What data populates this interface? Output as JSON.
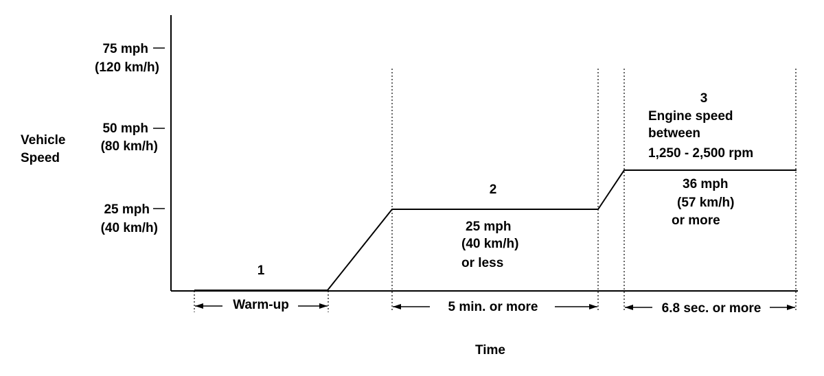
{
  "y_axis": {
    "label_line1": "Vehicle",
    "label_line2": "Speed",
    "ticks": [
      {
        "mph": "75 mph",
        "kmh": "(120 km/h)"
      },
      {
        "mph": "50 mph",
        "kmh": "(80 km/h)"
      },
      {
        "mph": "25 mph",
        "kmh": "(40 km/h)"
      }
    ]
  },
  "x_axis": {
    "label": "Time"
  },
  "phases": [
    {
      "number": "1",
      "duration": "Warm-up"
    },
    {
      "number": "2",
      "condition": [
        "25 mph",
        "(40 km/h)",
        "or less"
      ],
      "duration": "5 min. or more"
    },
    {
      "number": "3",
      "description": [
        "Engine speed",
        "between",
        "1,250 - 2,500 rpm"
      ],
      "condition": [
        "36 mph",
        "(57 km/h)",
        "or more"
      ],
      "duration": "6.8 sec. or more"
    }
  ]
}
